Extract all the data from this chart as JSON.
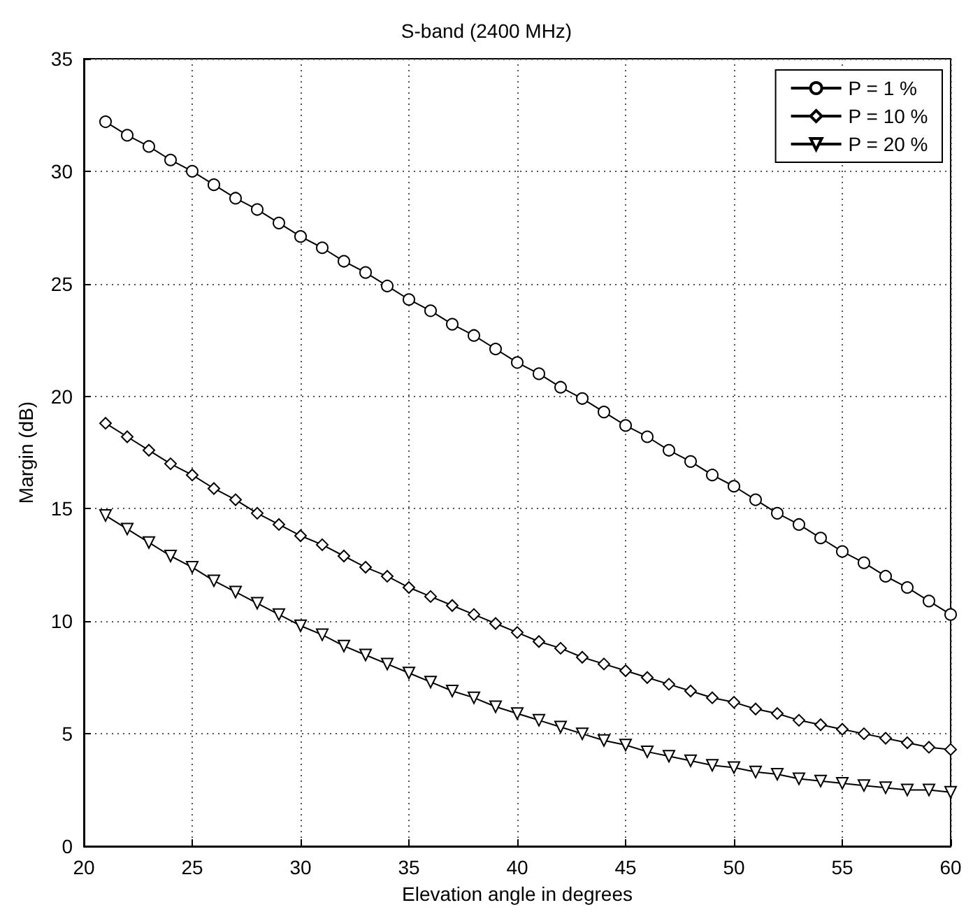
{
  "chart_data": {
    "type": "line",
    "title": "S-band (2400 MHz)",
    "xlabel": "Elevation angle in degrees",
    "ylabel": "Margin (dB)",
    "x": [
      21,
      22,
      23,
      24,
      25,
      26,
      27,
      28,
      29,
      30,
      31,
      32,
      33,
      34,
      35,
      36,
      37,
      38,
      39,
      40,
      41,
      42,
      43,
      44,
      45,
      46,
      47,
      48,
      49,
      50,
      51,
      52,
      53,
      54,
      55,
      56,
      57,
      58,
      59,
      60
    ],
    "series": [
      {
        "name": "P = 1 %",
        "color": "#000000",
        "marker": "circle",
        "values": [
          32.2,
          31.6,
          31.1,
          30.5,
          30.0,
          29.4,
          28.8,
          28.3,
          27.7,
          27.1,
          26.6,
          26.0,
          25.5,
          24.9,
          24.3,
          23.8,
          23.2,
          22.7,
          22.1,
          21.5,
          21.0,
          20.4,
          19.9,
          19.3,
          18.7,
          18.2,
          17.6,
          17.1,
          16.5,
          16.0,
          15.4,
          14.8,
          14.3,
          13.7,
          13.1,
          12.6,
          12.0,
          11.5,
          10.9,
          10.3
        ]
      },
      {
        "name": "P = 10 %",
        "color": "#000000",
        "marker": "diamond",
        "values": [
          18.8,
          18.2,
          17.6,
          17.0,
          16.5,
          15.9,
          15.4,
          14.8,
          14.3,
          13.8,
          13.4,
          12.9,
          12.4,
          12.0,
          11.5,
          11.1,
          10.7,
          10.3,
          9.9,
          9.5,
          9.1,
          8.8,
          8.4,
          8.1,
          7.8,
          7.5,
          7.2,
          6.9,
          6.6,
          6.4,
          6.1,
          5.9,
          5.6,
          5.4,
          5.2,
          5.0,
          4.8,
          4.6,
          4.4,
          4.3
        ]
      },
      {
        "name": "P = 20 %",
        "color": "#000000",
        "marker": "triangle",
        "values": [
          14.7,
          14.1,
          13.5,
          12.9,
          12.4,
          11.8,
          11.3,
          10.8,
          10.3,
          9.8,
          9.4,
          8.9,
          8.5,
          8.1,
          7.7,
          7.3,
          6.9,
          6.6,
          6.2,
          5.9,
          5.6,
          5.3,
          5.0,
          4.7,
          4.5,
          4.2,
          4.0,
          3.8,
          3.6,
          3.5,
          3.3,
          3.2,
          3.0,
          2.9,
          2.8,
          2.7,
          2.6,
          2.5,
          2.5,
          2.4
        ]
      }
    ],
    "xlim": [
      20,
      60
    ],
    "xticks": [
      20,
      25,
      30,
      35,
      40,
      45,
      50,
      55,
      60
    ],
    "ylim": [
      0,
      35
    ],
    "yticks": [
      0,
      5,
      10,
      15,
      20,
      25,
      30,
      35
    ],
    "grid": true,
    "legend": "top right",
    "line_style": "solid"
  }
}
